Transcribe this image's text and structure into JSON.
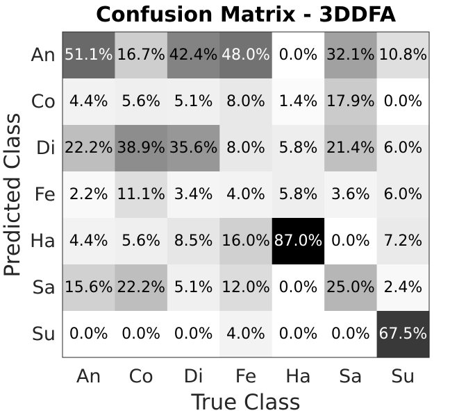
{
  "chart_data": {
    "type": "heatmap",
    "title": "Confusion Matrix - 3DDFA",
    "xlabel": "True Class",
    "ylabel": "Predicted Class",
    "x_categories": [
      "An",
      "Co",
      "Di",
      "Fe",
      "Ha",
      "Sa",
      "Su"
    ],
    "y_categories": [
      "An",
      "Co",
      "Di",
      "Fe",
      "Ha",
      "Sa",
      "Su"
    ],
    "values": [
      [
        51.1,
        16.7,
        42.4,
        48.0,
        0.0,
        32.1,
        10.8
      ],
      [
        4.4,
        5.6,
        5.1,
        8.0,
        1.4,
        17.9,
        0.0
      ],
      [
        22.2,
        38.9,
        35.6,
        8.0,
        5.8,
        21.4,
        6.0
      ],
      [
        2.2,
        11.1,
        3.4,
        4.0,
        5.8,
        3.6,
        6.0
      ],
      [
        4.4,
        5.6,
        8.5,
        16.0,
        87.0,
        0.0,
        7.2
      ],
      [
        15.6,
        22.2,
        5.1,
        12.0,
        0.0,
        25.0,
        2.4
      ],
      [
        0.0,
        0.0,
        0.0,
        4.0,
        0.0,
        0.0,
        67.5
      ]
    ],
    "value_format": "percent_1dp",
    "colormap": "grayscale",
    "color_low": "#ffffff",
    "color_high": "#000000",
    "grid": false
  }
}
